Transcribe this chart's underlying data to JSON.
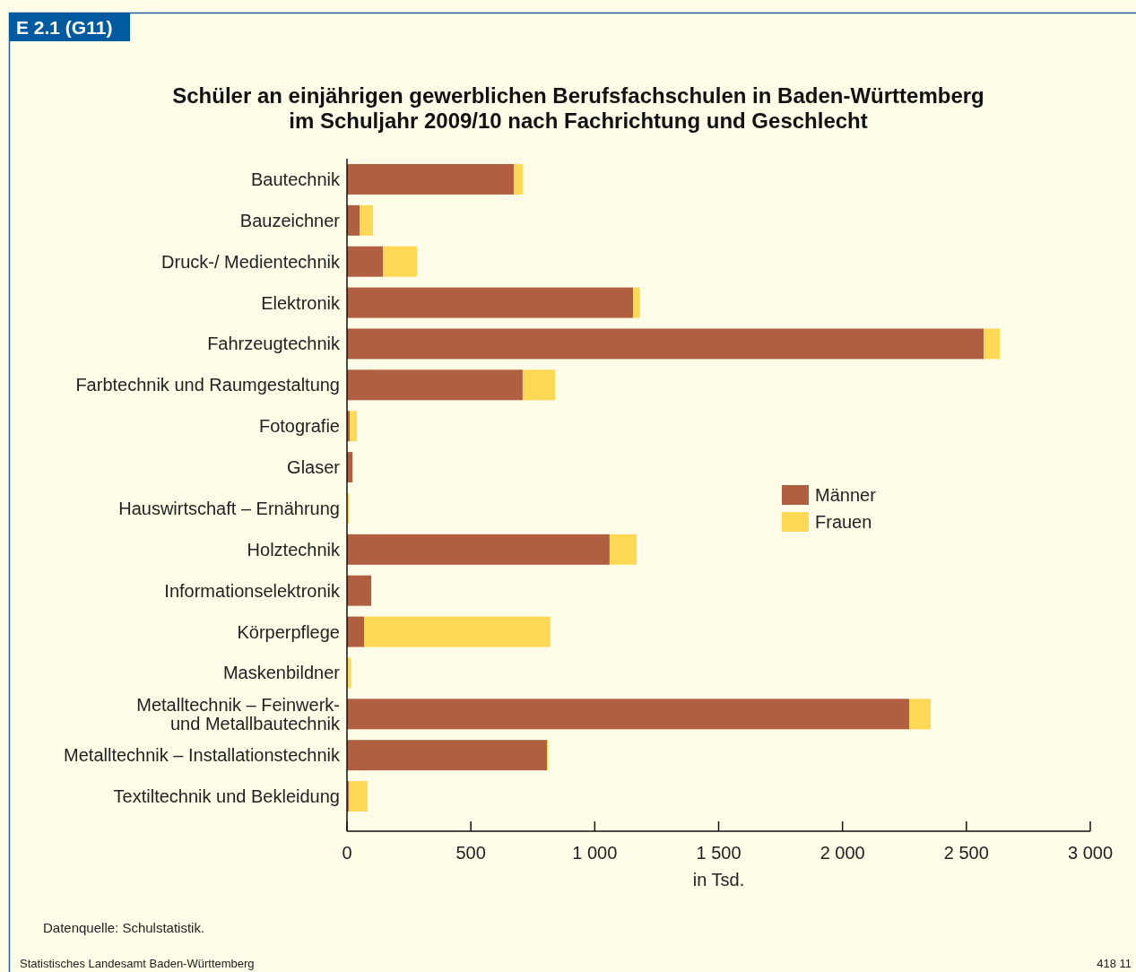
{
  "chart_data": {
    "type": "bar",
    "orientation": "horizontal",
    "stacked": true,
    "title": "Schüler an einjährigen gewerblichen Berufsfachschulen in Baden-Württemberg\nim Schuljahr 2009/10 nach Fachrichtung und Geschlecht",
    "xlabel": "in Tsd.",
    "categories": [
      "Bautechnik",
      "Bauzeichner",
      "Druck-/ Medientechnik",
      "Elektronik",
      "Fahrzeugtechnik",
      "Farbtechnik und Raumgestaltung",
      "Fotografie",
      "Glaser",
      "Hauswirtschaft – Ernährung",
      "Holztechnik",
      "Informationselektronik",
      "Körperpflege",
      "Maskenbildner",
      "Metalltechnik – Feinwerk-\nund Metallbautechnik",
      "Metalltechnik – Installationstechnik",
      "Textiltechnik und Bekleidung"
    ],
    "series": [
      {
        "name": "Männer",
        "color": "#b06040",
        "values": [
          673,
          51,
          145,
          1155,
          2570,
          709,
          11,
          22,
          null,
          1060,
          98,
          69,
          null,
          2269,
          807,
          7
        ]
      },
      {
        "name": "Frauen",
        "color": "#ffd955",
        "values": [
          36,
          54,
          137,
          28,
          65,
          131,
          29,
          0,
          8,
          109,
          0,
          752,
          16,
          87,
          4,
          76
        ]
      }
    ],
    "xlim": [
      0,
      3000
    ],
    "xticks": [
      0,
      500,
      {
        "value": 1000,
        "label": "1 000"
      },
      {
        "value": 1500,
        "label": "1 500"
      },
      {
        "value": 2000,
        "label": "2 000"
      },
      {
        "value": 2500,
        "label": "2 500"
      },
      {
        "value": 3000,
        "label": "3 000"
      }
    ],
    "legend": "right",
    "annotations": [
      "E 2.1 (G11)",
      "Datenquelle: Schulstatistik.",
      "Statistisches Landesamt Baden-Württemberg",
      "418 11"
    ]
  }
}
